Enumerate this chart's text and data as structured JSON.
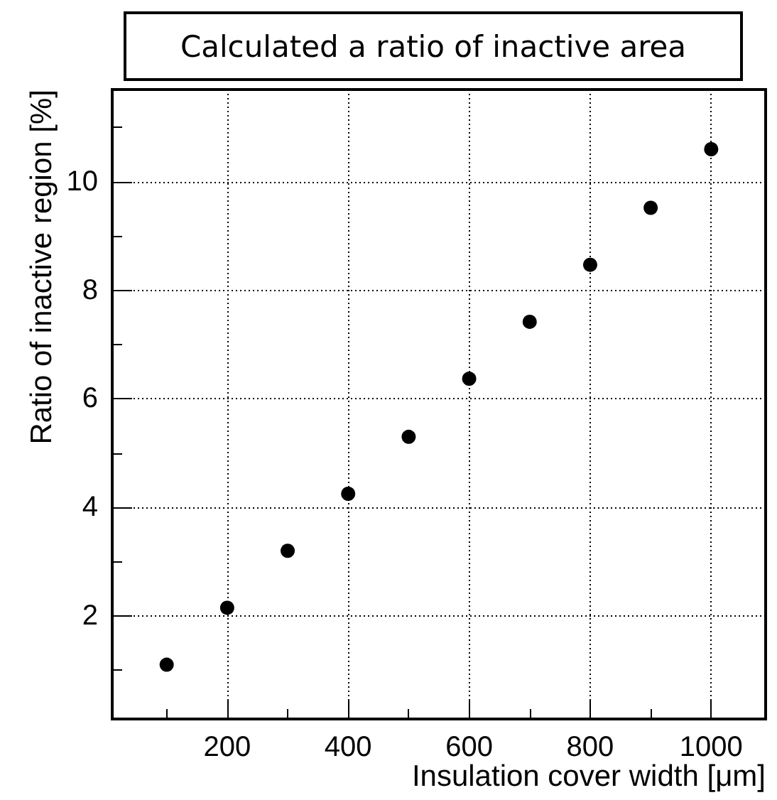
{
  "chart_data": {
    "type": "scatter",
    "title": "Calculated a ratio of inactive area",
    "xlabel": "Insulation cover width [μm]",
    "ylabel": "Ratio of inactive region [%]",
    "x": [
      100,
      200,
      300,
      400,
      500,
      600,
      700,
      800,
      900,
      1000
    ],
    "series": [
      {
        "color": "#000000",
        "values": [
          1.1,
          2.15,
          3.2,
          4.25,
          5.3,
          6.37,
          7.42,
          8.47,
          9.52,
          10.6
        ]
      }
    ],
    "xlim": [
      10,
      1090
    ],
    "xticks": [
      200,
      400,
      600,
      800,
      1000
    ],
    "ylim": [
      0.1,
      11.7
    ],
    "yticks": [
      2,
      4,
      6,
      8,
      10
    ],
    "grid": true,
    "marker": "circle"
  }
}
